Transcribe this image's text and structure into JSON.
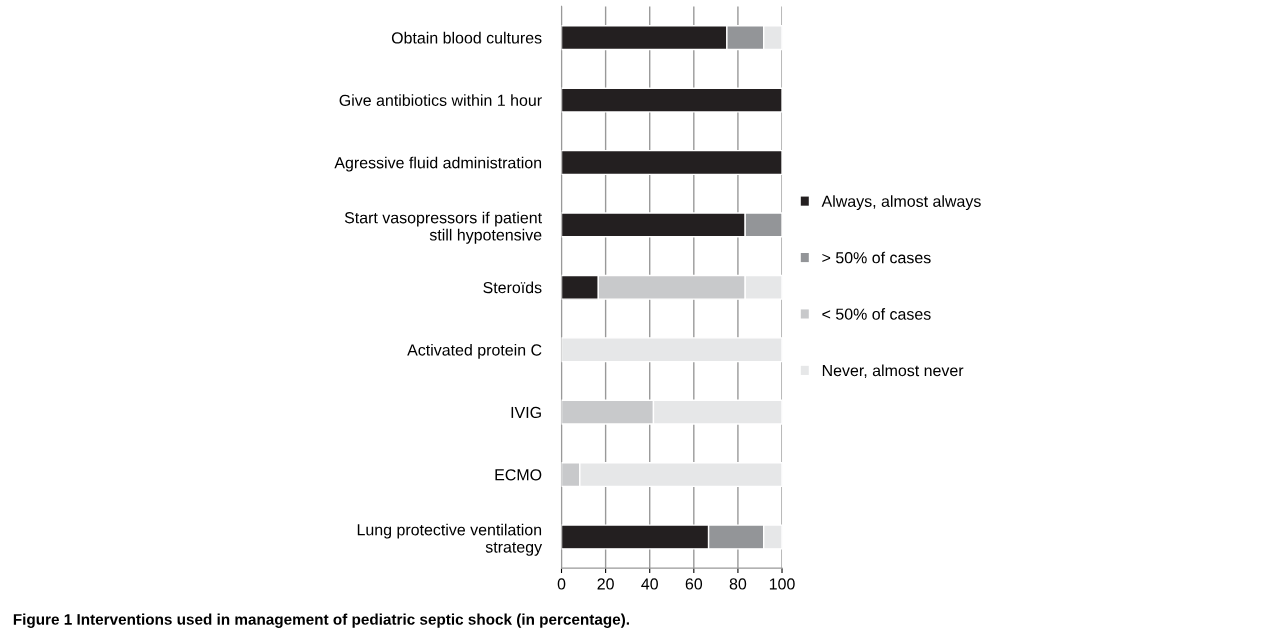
{
  "chart_data": {
    "type": "bar",
    "orientation": "horizontal",
    "stacked": true,
    "categories": [
      "Obtain blood cultures",
      "Give antibiotics within 1 hour",
      "Agressive fluid administration",
      "Start vasopressors if patient\nstill hypotensive",
      "Steroïds",
      "Activated protein C",
      "IVIG",
      "ECMO",
      "Lung protective ventilation\nstrategy"
    ],
    "series": [
      {
        "name": "Always, almost always",
        "color": "#231f20",
        "values": [
          75,
          100,
          100,
          83.3,
          16.7,
          0,
          0,
          0,
          66.7
        ]
      },
      {
        "name": "> 50% of cases",
        "color": "#939598",
        "values": [
          16.7,
          0,
          0,
          16.7,
          0,
          0,
          0,
          0,
          25
        ]
      },
      {
        "name": "< 50% of cases",
        "color": "#c8c9cb",
        "values": [
          0,
          0,
          0,
          0,
          66.6,
          0,
          41.7,
          8.3,
          0
        ]
      },
      {
        "name": "Never, almost never",
        "color": "#e6e7e8",
        "values": [
          8.3,
          0,
          0,
          0,
          16.7,
          100,
          58.3,
          91.7,
          8.3
        ]
      }
    ],
    "xlim": [
      0,
      100
    ],
    "xticks": [
      0,
      20,
      40,
      60,
      80,
      100
    ],
    "grid": "x",
    "legend": "right",
    "annotations": [
      "Figure 1 Interventions used in management of pediatric septic shock (in percentage)."
    ]
  }
}
